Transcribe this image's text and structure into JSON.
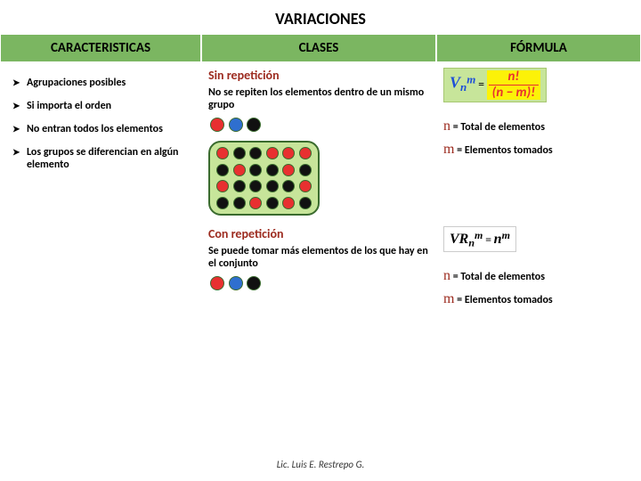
{
  "title": "VARIACIONES",
  "headers": {
    "c1": "CARACTERISTICAS",
    "c2": "CLASES",
    "c3": "FÓRMULA"
  },
  "caracteristicas": [
    "Agrupaciones posibles",
    "Si importa el orden",
    "No entran todos los elementos",
    "Los grupos se diferencian en algún elemento"
  ],
  "sin_rep": {
    "label": "Sin repetición",
    "note": "No se repiten los elementos dentro de un mismo grupo",
    "dots": [
      "red",
      "blue",
      "black"
    ],
    "container_rows": [
      [
        "red",
        "black",
        "black",
        "red",
        "red",
        "red"
      ],
      [
        "black",
        "red",
        "black",
        "black",
        "red",
        "black"
      ],
      [
        "red",
        "black",
        "black",
        "black",
        "black",
        "red"
      ],
      [
        "black",
        "black",
        "red",
        "black",
        "red",
        "black"
      ]
    ]
  },
  "con_rep": {
    "label": "Con repetición",
    "note": "Se puede tomar más elementos de los que hay en el conjunto",
    "dots": [
      "red",
      "blue",
      "black"
    ]
  },
  "formula1": {
    "V": "V",
    "n": "n",
    "m": "m",
    "eq": "=",
    "num": "n!",
    "den": "(n − m)!"
  },
  "formula2": {
    "VR": "VR",
    "n": "n",
    "m": "m",
    "eq": "=",
    "rhs_base": "n",
    "rhs_exp": "m"
  },
  "legend": {
    "n_label": "n",
    "n_text": " = Total de elementos",
    "m_label": "m",
    "m_text": " = Elementos tomados",
    "n2_label": "n",
    "n2_text": " = Total de elementos",
    "m2_label": "m",
    "m2_text": " =  Elementos tomados"
  },
  "footer": "Lic. Luis E. Restrepo G.",
  "colors": {
    "header_bg": "#7bb661",
    "container_bg": "#c7e59a",
    "container_border": "#3a6b2e",
    "red": "#e83030",
    "blue": "#2f6fcf",
    "black": "#111111",
    "maroon": "#9c2b1f",
    "highlight": "#fcf208",
    "blue_text": "#1d4fd8"
  }
}
